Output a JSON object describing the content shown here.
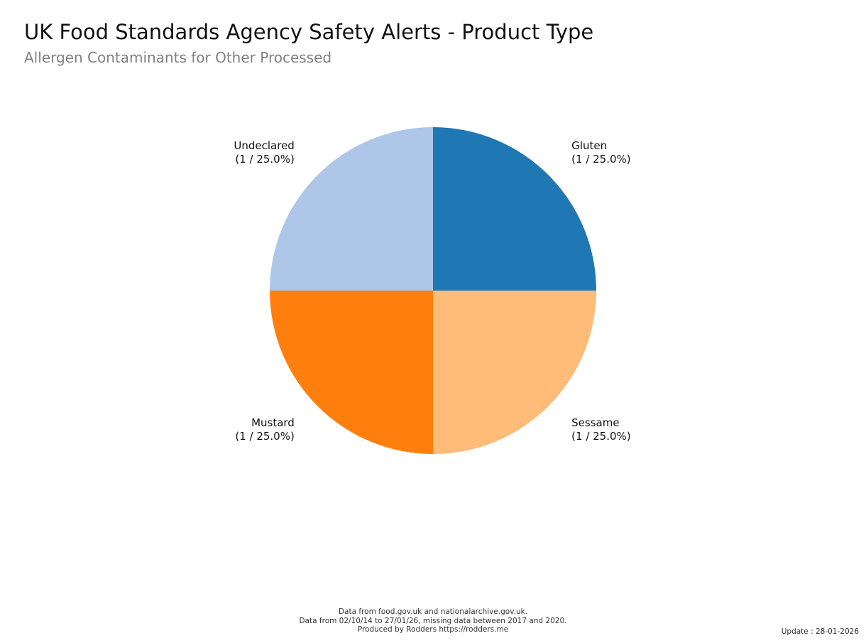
{
  "title": "UK Food Standards Agency Safety Alerts - Product Type",
  "subtitle": "Allergen Contaminants for Other Processed",
  "chart_data": {
    "type": "pie",
    "start_angle_deg": 90,
    "direction": "clockwise",
    "slices": [
      {
        "label": "Gluten",
        "value": 1,
        "display": "(1 / 25.0%)",
        "color": "#1f77b4"
      },
      {
        "label": "Sessame",
        "value": 1,
        "display": "(1 / 25.0%)",
        "color": "#ffbb78"
      },
      {
        "label": "Mustard",
        "value": 1,
        "display": "(1 / 25.0%)",
        "color": "#ff7f0e"
      },
      {
        "label": "Undeclared",
        "value": 1,
        "display": "(1 / 25.0%)",
        "color": "#aec7e8"
      }
    ]
  },
  "footer": {
    "line1": "Data from food.gov.uk and nationalarchive.gov.uk.",
    "line2": "Data from 02/10/14 to 27/01/26, missing data between 2017 and 2020.",
    "line3": "Produced by Rodders https://rodders.me"
  },
  "update": "Update : 28-01-2026"
}
